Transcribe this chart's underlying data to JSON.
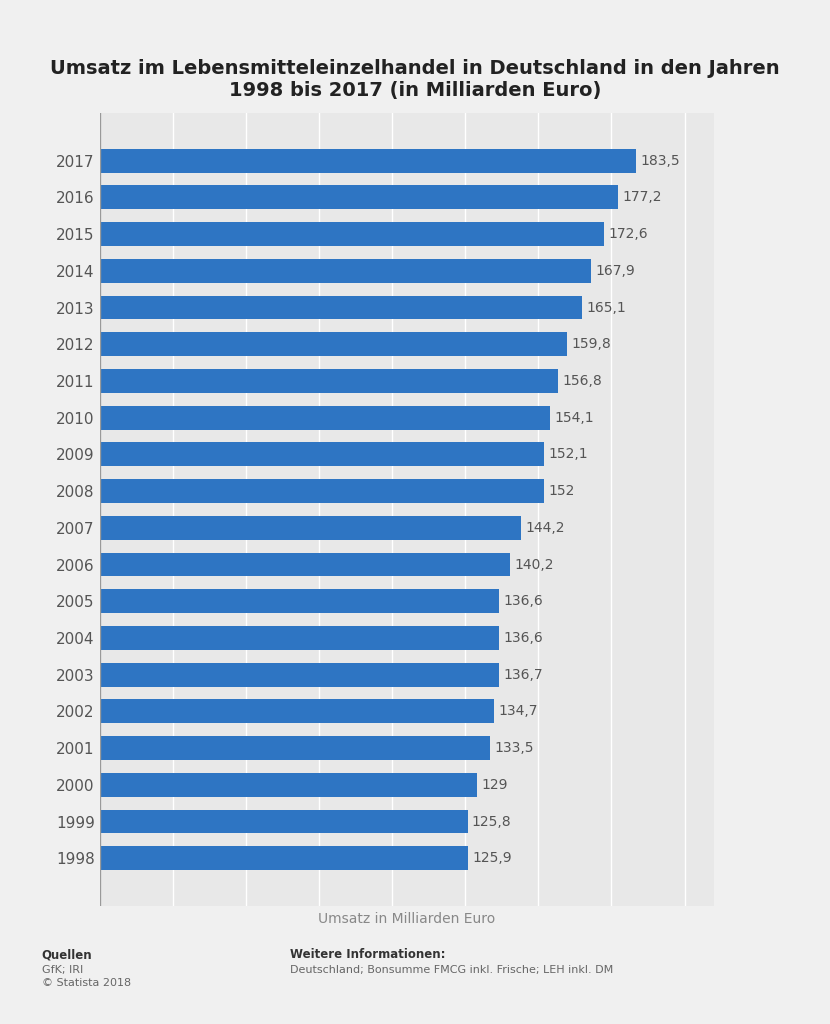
{
  "title": "Umsatz im Lebensmitteleinzelhandel in Deutschland in den Jahren\n1998 bis 2017 (in Milliarden Euro)",
  "years": [
    "2017",
    "2016",
    "2015",
    "2014",
    "2013",
    "2012",
    "2011",
    "2010",
    "2009",
    "2008",
    "2007",
    "2006",
    "2005",
    "2004",
    "2003",
    "2002",
    "2001",
    "2000",
    "1999",
    "1998"
  ],
  "values": [
    183.5,
    177.2,
    172.6,
    167.9,
    165.1,
    159.8,
    156.8,
    154.1,
    152.1,
    152.0,
    144.2,
    140.2,
    136.6,
    136.6,
    136.7,
    134.7,
    133.5,
    129.0,
    125.8,
    125.9
  ],
  "labels": [
    "183,5",
    "177,2",
    "172,6",
    "167,9",
    "165,1",
    "159,8",
    "156,8",
    "154,1",
    "152,1",
    "152",
    "144,2",
    "140,2",
    "136,6",
    "136,6",
    "136,7",
    "134,7",
    "133,5",
    "129",
    "125,8",
    "125,9"
  ],
  "bar_color": "#2e75c3",
  "bg_color": "#f0f0f0",
  "plot_bg_color": "#e8e8e8",
  "xlabel": "Umsatz in Milliarden Euro",
  "title_fontsize": 14,
  "label_fontsize": 10,
  "tick_fontsize": 11,
  "xlabel_fontsize": 10,
  "footer_left_bold": "Quellen",
  "footer_left_normal": "GfK; IRI\n© Statista 2018",
  "footer_right_bold": "Weitere Informationen:",
  "footer_right_normal": "Deutschland; Bonsumme FMCG inkl. Frische; LEH inkl. DM",
  "xlim": [
    0,
    210
  ]
}
